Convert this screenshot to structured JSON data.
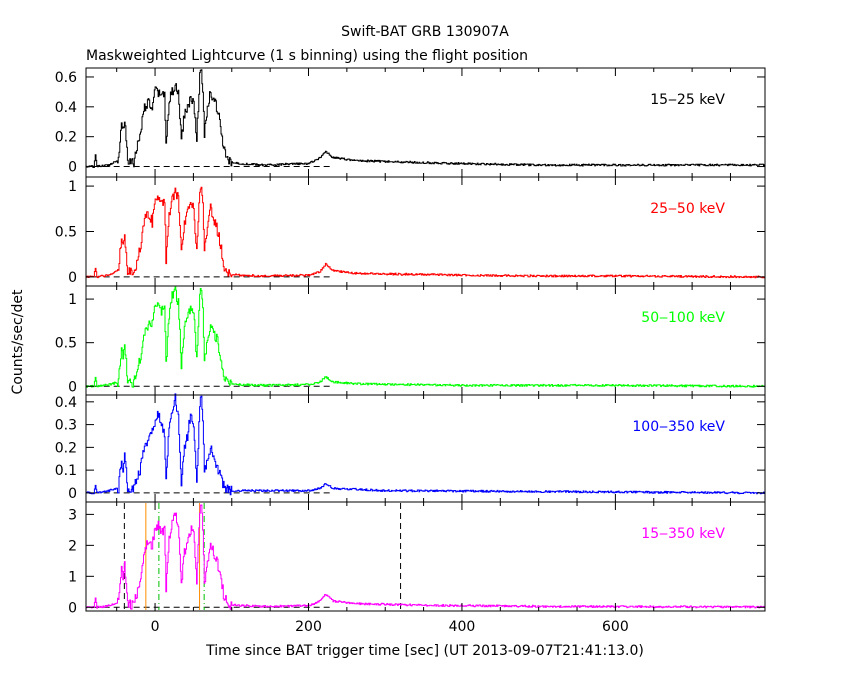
{
  "title": "Swift-BAT GRB 130907A",
  "subtitle": "Maskweighted Lightcurve (1 s binning) using the flight position",
  "xlabel": "Time since BAT trigger time [sec] (UT 2013-09-07T21:41:13.0)",
  "ylabel": "Counts/sec/det",
  "chart_data": {
    "type": "line",
    "x_range": [
      -90,
      795
    ],
    "x_ticks": [
      0,
      200,
      400,
      600
    ],
    "x_tick_labels": [
      "0",
      "200",
      "400",
      "600"
    ],
    "panels": [
      {
        "label": "15‒25 keV",
        "color": "#000000",
        "ylim": [
          -0.07,
          0.66
        ],
        "y_ticks": [
          0,
          0.2,
          0.4,
          0.6
        ],
        "y_tick_labels": [
          "0",
          "0.2",
          "0.4",
          "0.6"
        ],
        "points": [
          [
            -90,
            0.0
          ],
          [
            -80,
            0.0
          ],
          [
            -78,
            0.08
          ],
          [
            -76,
            0.0
          ],
          [
            -60,
            0.01
          ],
          [
            -48,
            0.05
          ],
          [
            -44,
            0.3
          ],
          [
            -42,
            0.25
          ],
          [
            -40,
            0.32
          ],
          [
            -36,
            0.03
          ],
          [
            -28,
            0.03
          ],
          [
            -20,
            0.22
          ],
          [
            -14,
            0.4
          ],
          [
            -8,
            0.43
          ],
          [
            -4,
            0.38
          ],
          [
            0,
            0.52
          ],
          [
            4,
            0.48
          ],
          [
            8,
            0.5
          ],
          [
            12,
            0.47
          ],
          [
            14,
            0.15
          ],
          [
            18,
            0.45
          ],
          [
            22,
            0.5
          ],
          [
            26,
            0.53
          ],
          [
            30,
            0.5
          ],
          [
            34,
            0.18
          ],
          [
            38,
            0.35
          ],
          [
            42,
            0.4
          ],
          [
            46,
            0.45
          ],
          [
            50,
            0.43
          ],
          [
            54,
            0.2
          ],
          [
            58,
            0.6
          ],
          [
            60,
            0.63
          ],
          [
            62,
            0.5
          ],
          [
            64,
            0.22
          ],
          [
            68,
            0.38
          ],
          [
            72,
            0.5
          ],
          [
            76,
            0.45
          ],
          [
            80,
            0.4
          ],
          [
            84,
            0.3
          ],
          [
            90,
            0.1
          ],
          [
            96,
            0.03
          ],
          [
            110,
            0.02
          ],
          [
            140,
            0.01
          ],
          [
            200,
            0.02
          ],
          [
            215,
            0.06
          ],
          [
            222,
            0.1
          ],
          [
            232,
            0.06
          ],
          [
            260,
            0.04
          ],
          [
            320,
            0.03
          ],
          [
            400,
            0.02
          ],
          [
            500,
            0.01
          ],
          [
            600,
            0.01
          ],
          [
            795,
            0.01
          ]
        ]
      },
      {
        "label": "25‒50 keV",
        "color": "#ff0000",
        "ylim": [
          -0.1,
          1.1
        ],
        "y_ticks": [
          0,
          0.5,
          1
        ],
        "y_tick_labels": [
          "0",
          "0.5",
          "1"
        ],
        "points": [
          [
            -90,
            0.0
          ],
          [
            -80,
            0.0
          ],
          [
            -78,
            0.1
          ],
          [
            -76,
            0.0
          ],
          [
            -60,
            0.02
          ],
          [
            -48,
            0.08
          ],
          [
            -44,
            0.45
          ],
          [
            -42,
            0.35
          ],
          [
            -40,
            0.48
          ],
          [
            -36,
            0.05
          ],
          [
            -28,
            0.04
          ],
          [
            -20,
            0.3
          ],
          [
            -14,
            0.65
          ],
          [
            -8,
            0.7
          ],
          [
            -4,
            0.6
          ],
          [
            0,
            0.85
          ],
          [
            4,
            0.9
          ],
          [
            8,
            0.8
          ],
          [
            12,
            0.85
          ],
          [
            14,
            0.2
          ],
          [
            18,
            0.7
          ],
          [
            22,
            0.85
          ],
          [
            26,
            0.93
          ],
          [
            30,
            0.88
          ],
          [
            34,
            0.25
          ],
          [
            38,
            0.6
          ],
          [
            42,
            0.7
          ],
          [
            46,
            0.8
          ],
          [
            50,
            0.75
          ],
          [
            54,
            0.3
          ],
          [
            58,
            0.95
          ],
          [
            60,
            1.03
          ],
          [
            62,
            0.8
          ],
          [
            64,
            0.3
          ],
          [
            68,
            0.5
          ],
          [
            72,
            0.75
          ],
          [
            76,
            0.65
          ],
          [
            80,
            0.55
          ],
          [
            84,
            0.4
          ],
          [
            90,
            0.1
          ],
          [
            96,
            0.03
          ],
          [
            110,
            0.02
          ],
          [
            140,
            0.01
          ],
          [
            200,
            0.02
          ],
          [
            215,
            0.06
          ],
          [
            222,
            0.14
          ],
          [
            232,
            0.07
          ],
          [
            260,
            0.04
          ],
          [
            320,
            0.03
          ],
          [
            400,
            0.02
          ],
          [
            500,
            0.01
          ],
          [
            600,
            0.01
          ],
          [
            795,
            0.0
          ]
        ]
      },
      {
        "label": "50‒100 keV",
        "color": "#00ff00",
        "ylim": [
          -0.1,
          1.15
        ],
        "y_ticks": [
          0,
          0.5,
          1
        ],
        "y_tick_labels": [
          "0",
          "0.5",
          "1"
        ],
        "points": [
          [
            -90,
            0.0
          ],
          [
            -80,
            0.0
          ],
          [
            -78,
            0.1
          ],
          [
            -76,
            0.0
          ],
          [
            -60,
            0.02
          ],
          [
            -48,
            0.05
          ],
          [
            -44,
            0.45
          ],
          [
            -42,
            0.35
          ],
          [
            -40,
            0.5
          ],
          [
            -36,
            0.05
          ],
          [
            -28,
            0.04
          ],
          [
            -20,
            0.3
          ],
          [
            -14,
            0.6
          ],
          [
            -8,
            0.7
          ],
          [
            -4,
            0.75
          ],
          [
            0,
            0.9
          ],
          [
            4,
            0.95
          ],
          [
            8,
            0.85
          ],
          [
            12,
            0.9
          ],
          [
            14,
            0.25
          ],
          [
            18,
            0.8
          ],
          [
            22,
            1.05
          ],
          [
            26,
            1.1
          ],
          [
            30,
            0.95
          ],
          [
            34,
            0.25
          ],
          [
            38,
            0.7
          ],
          [
            42,
            0.8
          ],
          [
            46,
            0.9
          ],
          [
            50,
            0.85
          ],
          [
            54,
            0.3
          ],
          [
            58,
            1.0
          ],
          [
            60,
            1.15
          ],
          [
            62,
            0.85
          ],
          [
            64,
            0.3
          ],
          [
            68,
            0.5
          ],
          [
            72,
            0.7
          ],
          [
            76,
            0.6
          ],
          [
            80,
            0.55
          ],
          [
            84,
            0.4
          ],
          [
            90,
            0.1
          ],
          [
            96,
            0.02
          ],
          [
            110,
            0.02
          ],
          [
            140,
            0.01
          ],
          [
            200,
            0.02
          ],
          [
            215,
            0.05
          ],
          [
            222,
            0.11
          ],
          [
            232,
            0.05
          ],
          [
            260,
            0.03
          ],
          [
            320,
            0.02
          ],
          [
            400,
            0.01
          ],
          [
            500,
            0.01
          ],
          [
            600,
            0.01
          ],
          [
            795,
            0.0
          ]
        ]
      },
      {
        "label": "100‒350 keV",
        "color": "#0000ff",
        "ylim": [
          -0.04,
          0.43
        ],
        "y_ticks": [
          0,
          0.1,
          0.2,
          0.3,
          0.4
        ],
        "y_tick_labels": [
          "0",
          "0.1",
          "0.2",
          "0.3",
          "0.4"
        ],
        "points": [
          [
            -90,
            0.0
          ],
          [
            -80,
            0.0
          ],
          [
            -78,
            0.03
          ],
          [
            -76,
            0.0
          ],
          [
            -60,
            0.01
          ],
          [
            -48,
            0.02
          ],
          [
            -44,
            0.15
          ],
          [
            -42,
            0.1
          ],
          [
            -40,
            0.16
          ],
          [
            -36,
            0.02
          ],
          [
            -28,
            0.02
          ],
          [
            -20,
            0.1
          ],
          [
            -14,
            0.2
          ],
          [
            -8,
            0.25
          ],
          [
            -4,
            0.28
          ],
          [
            0,
            0.3
          ],
          [
            4,
            0.35
          ],
          [
            8,
            0.3
          ],
          [
            12,
            0.25
          ],
          [
            14,
            0.05
          ],
          [
            18,
            0.3
          ],
          [
            22,
            0.35
          ],
          [
            26,
            0.42
          ],
          [
            30,
            0.33
          ],
          [
            34,
            0.05
          ],
          [
            38,
            0.2
          ],
          [
            42,
            0.25
          ],
          [
            46,
            0.35
          ],
          [
            50,
            0.3
          ],
          [
            54,
            0.05
          ],
          [
            58,
            0.38
          ],
          [
            60,
            0.42
          ],
          [
            62,
            0.3
          ],
          [
            64,
            0.1
          ],
          [
            68,
            0.15
          ],
          [
            72,
            0.2
          ],
          [
            76,
            0.15
          ],
          [
            80,
            0.12
          ],
          [
            84,
            0.08
          ],
          [
            90,
            0.02
          ],
          [
            96,
            0.01
          ],
          [
            140,
            0.01
          ],
          [
            200,
            0.01
          ],
          [
            215,
            0.02
          ],
          [
            222,
            0.04
          ],
          [
            232,
            0.02
          ],
          [
            300,
            0.01
          ],
          [
            795,
            0.0
          ]
        ]
      },
      {
        "label": "15‒350 keV",
        "color": "#ff00ff",
        "ylim": [
          -0.12,
          3.4
        ],
        "y_ticks": [
          0,
          1,
          2,
          3
        ],
        "y_tick_labels": [
          "0",
          "1",
          "2",
          "3"
        ],
        "points": [
          [
            -90,
            0.0
          ],
          [
            -80,
            0.0
          ],
          [
            -78,
            0.3
          ],
          [
            -76,
            0.0
          ],
          [
            -60,
            0.05
          ],
          [
            -48,
            0.15
          ],
          [
            -44,
            1.3
          ],
          [
            -42,
            1.0
          ],
          [
            -40,
            1.4
          ],
          [
            -36,
            0.1
          ],
          [
            -28,
            0.1
          ],
          [
            -20,
            0.8
          ],
          [
            -14,
            1.9
          ],
          [
            -8,
            2.1
          ],
          [
            -4,
            2.0
          ],
          [
            0,
            2.5
          ],
          [
            4,
            2.7
          ],
          [
            8,
            2.4
          ],
          [
            12,
            2.5
          ],
          [
            14,
            0.6
          ],
          [
            18,
            2.2
          ],
          [
            22,
            2.8
          ],
          [
            26,
            3.05
          ],
          [
            30,
            2.7
          ],
          [
            34,
            0.7
          ],
          [
            38,
            1.8
          ],
          [
            42,
            2.1
          ],
          [
            46,
            2.5
          ],
          [
            50,
            2.4
          ],
          [
            54,
            0.8
          ],
          [
            58,
            3.0
          ],
          [
            60,
            3.3
          ],
          [
            62,
            2.5
          ],
          [
            64,
            0.8
          ],
          [
            68,
            1.5
          ],
          [
            72,
            2.1
          ],
          [
            76,
            1.8
          ],
          [
            80,
            1.5
          ],
          [
            84,
            1.1
          ],
          [
            90,
            0.3
          ],
          [
            96,
            0.08
          ],
          [
            110,
            0.06
          ],
          [
            140,
            0.03
          ],
          [
            200,
            0.05
          ],
          [
            215,
            0.2
          ],
          [
            222,
            0.42
          ],
          [
            232,
            0.2
          ],
          [
            260,
            0.12
          ],
          [
            320,
            0.08
          ],
          [
            400,
            0.05
          ],
          [
            500,
            0.03
          ],
          [
            600,
            0.02
          ],
          [
            795,
            0.01
          ]
        ],
        "markers": [
          {
            "x": -40,
            "color": "#000000",
            "style": "dashed"
          },
          {
            "x": 320,
            "color": "#000000",
            "style": "dashed"
          },
          {
            "x": -12,
            "color": "#ff8c00",
            "style": "solid"
          },
          {
            "x": 58,
            "color": "#ff8c00",
            "style": "solid"
          },
          {
            "x": 5,
            "color": "#00c000",
            "style": "dashdot"
          },
          {
            "x": 64,
            "color": "#00c000",
            "style": "dashdot"
          }
        ]
      }
    ]
  }
}
